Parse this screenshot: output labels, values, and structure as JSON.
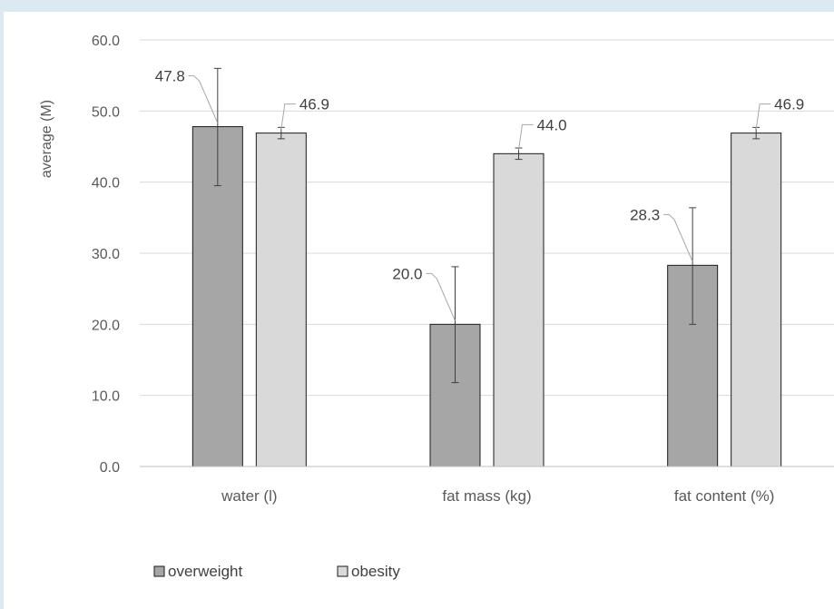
{
  "chart_data": {
    "type": "bar",
    "title": "",
    "xlabel": "",
    "ylabel": "average (M)",
    "ylim": [
      0,
      60
    ],
    "yticks": [
      "0.0",
      "10.0",
      "20.0",
      "30.0",
      "40.0",
      "50.0",
      "60.0"
    ],
    "grid": true,
    "legend_position": "bottom-left",
    "categories": [
      "water (l)",
      "fat mass (kg)",
      "fat content (%)"
    ],
    "series": [
      {
        "name": "overweight",
        "color": "#a6a6a6",
        "values": [
          47.8,
          20.0,
          28.3
        ],
        "labels": [
          "47.8",
          "20.0",
          "28.3"
        ],
        "error_low": [
          39.5,
          11.8,
          20.0
        ],
        "error_high": [
          56.0,
          28.1,
          36.4
        ]
      },
      {
        "name": "obesity",
        "color": "#d9d9d9",
        "values": [
          46.9,
          44.0,
          46.9
        ],
        "labels": [
          "46.9",
          "44.0",
          "46.9"
        ],
        "error_low": [
          46.1,
          43.2,
          46.1
        ],
        "error_high": [
          47.7,
          44.8,
          47.7
        ]
      }
    ]
  }
}
